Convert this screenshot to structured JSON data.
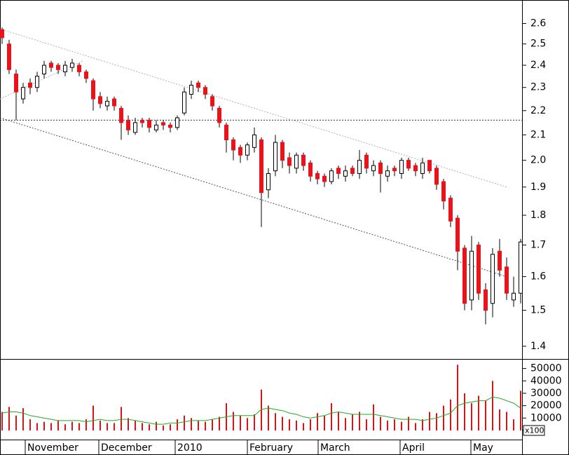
{
  "chart_data": [
    {
      "type": "candlestick",
      "log_scale": true,
      "up_color": "#ffffff",
      "down_color": "#e8131b",
      "edge_color": "#000000",
      "xlim": [
        -0.3,
        74.2
      ],
      "xticks": [
        {
          "value": 3.3,
          "label": "November"
        },
        {
          "value": 13.8,
          "label": "December"
        },
        {
          "value": 24.7,
          "label": "2010"
        },
        {
          "value": 35.0,
          "label": "February"
        },
        {
          "value": 45.1,
          "label": "March"
        },
        {
          "value": 56.8,
          "label": "April"
        },
        {
          "value": 66.9,
          "label": "May"
        }
      ],
      "ylim": [
        1.37,
        2.72
      ],
      "yticks": [
        1.4,
        1.5,
        1.6,
        1.7,
        1.8,
        1.9,
        {
          "value": 2,
          "label": "2.0"
        },
        2.1,
        2.2,
        2.3,
        2.4,
        2.5,
        2.6
      ],
      "open": [
        2.57,
        2.5,
        2.36,
        2.25,
        2.32,
        2.3,
        2.36,
        2.41,
        2.4,
        2.37,
        2.39,
        2.4,
        2.37,
        2.33,
        2.26,
        2.22,
        2.25,
        2.21,
        2.16,
        2.11,
        2.16,
        2.16,
        2.12,
        2.15,
        2.14,
        2.13,
        2.19,
        2.27,
        2.32,
        2.3,
        2.26,
        2.21,
        2.14,
        2.08,
        2.05,
        2.02,
        2.05,
        2.08,
        1.89,
        1.96,
        2.07,
        2.01,
        1.97,
        2.02,
        1.99,
        1.95,
        1.94,
        1.92,
        1.97,
        1.94,
        1.97,
        1.95,
        2.02,
        1.96,
        1.99,
        1.94,
        1.97,
        1.95,
        2.0,
        1.98,
        1.95,
        2.0,
        1.97,
        1.92,
        1.86,
        1.79,
        1.69,
        1.53,
        1.7,
        1.56,
        1.52,
        1.68,
        1.63,
        1.53,
        1.55
      ],
      "high": [
        2.58,
        2.52,
        2.38,
        2.32,
        2.34,
        2.37,
        2.42,
        2.42,
        2.41,
        2.42,
        2.43,
        2.41,
        2.38,
        2.34,
        2.28,
        2.26,
        2.26,
        2.22,
        2.18,
        2.17,
        2.17,
        2.17,
        2.16,
        2.16,
        2.15,
        2.18,
        2.3,
        2.33,
        2.33,
        2.31,
        2.27,
        2.22,
        2.15,
        2.09,
        2.06,
        2.07,
        2.13,
        2.09,
        1.97,
        2.1,
        2.08,
        2.03,
        2.03,
        2.03,
        2.0,
        1.96,
        1.95,
        1.97,
        1.98,
        1.98,
        1.98,
        2.04,
        2.03,
        2.0,
        2.0,
        1.98,
        1.98,
        2.01,
        2.01,
        1.99,
        2.01,
        2.0,
        1.98,
        1.93,
        1.87,
        1.8,
        1.7,
        1.73,
        1.71,
        1.58,
        1.69,
        1.72,
        1.66,
        1.6,
        1.72
      ],
      "low": [
        2.5,
        2.36,
        2.16,
        2.23,
        2.27,
        2.28,
        2.34,
        2.37,
        2.36,
        2.35,
        2.37,
        2.35,
        2.32,
        2.2,
        2.21,
        2.2,
        2.2,
        2.08,
        2.1,
        2.1,
        2.13,
        2.11,
        2.11,
        2.12,
        2.11,
        2.12,
        2.18,
        2.25,
        2.28,
        2.25,
        2.2,
        2.13,
        2.03,
        2.0,
        1.99,
        2.0,
        2.03,
        1.76,
        1.86,
        1.94,
        1.97,
        1.95,
        1.95,
        1.96,
        1.92,
        1.91,
        1.9,
        1.91,
        1.93,
        1.92,
        1.94,
        1.93,
        1.95,
        1.94,
        1.88,
        1.92,
        1.94,
        1.93,
        1.96,
        1.94,
        1.93,
        1.95,
        1.89,
        1.82,
        1.76,
        1.62,
        1.5,
        1.5,
        1.53,
        1.46,
        1.48,
        1.6,
        1.53,
        1.51,
        1.52
      ],
      "close": [
        2.53,
        2.38,
        2.28,
        2.3,
        2.3,
        2.35,
        2.4,
        2.39,
        2.38,
        2.4,
        2.41,
        2.37,
        2.34,
        2.25,
        2.23,
        2.24,
        2.22,
        2.15,
        2.12,
        2.15,
        2.15,
        2.13,
        2.14,
        2.14,
        2.13,
        2.17,
        2.28,
        2.31,
        2.3,
        2.27,
        2.22,
        2.15,
        2.08,
        2.04,
        2.02,
        2.06,
        2.1,
        1.88,
        1.95,
        2.07,
        2.0,
        1.98,
        2.02,
        1.98,
        1.94,
        1.93,
        1.92,
        1.96,
        1.95,
        1.96,
        1.95,
        2.0,
        1.97,
        1.98,
        1.95,
        1.96,
        1.96,
        2.0,
        1.97,
        1.96,
        1.99,
        1.96,
        1.91,
        1.85,
        1.78,
        1.68,
        1.52,
        1.68,
        1.55,
        1.5,
        1.67,
        1.62,
        1.55,
        1.55,
        1.71
      ],
      "lines": [
        {
          "x": [
            0,
            72
          ],
          "y": [
            2.57,
            1.9
          ],
          "color": "#b0b0b0"
        },
        {
          "x": [
            -0.3,
            72
          ],
          "y": [
            2.17,
            1.6
          ],
          "color": "#555555"
        },
        {
          "x": [
            -0.3,
            11.5
          ],
          "y": [
            2.25,
            2.42
          ],
          "color": "#b0b0b0"
        }
      ],
      "hlines": [
        2.16
      ]
    },
    {
      "type": "bar",
      "color": "#d01818",
      "unit_label": "x100",
      "ylim": [
        0,
        56000
      ],
      "yticks": [
        0,
        10000,
        20000,
        30000,
        40000,
        50000
      ],
      "values": [
        15000,
        19000,
        12000,
        18000,
        9000,
        6000,
        7000,
        6000,
        8000,
        5000,
        7000,
        6000,
        9000,
        20000,
        8000,
        6000,
        6000,
        19000,
        10000,
        8000,
        6000,
        5000,
        7000,
        4000,
        5000,
        9000,
        12000,
        10000,
        8000,
        7000,
        9000,
        11000,
        22000,
        15000,
        12000,
        10000,
        13000,
        33000,
        20000,
        14000,
        11000,
        9000,
        8000,
        6000,
        9000,
        14000,
        12000,
        22000,
        15000,
        10000,
        13000,
        15000,
        9000,
        21000,
        11000,
        8000,
        9000,
        7000,
        11000,
        6000,
        9000,
        15000,
        14000,
        20000,
        25000,
        53000,
        30000,
        22000,
        28000,
        24000,
        40000,
        17000,
        15000,
        9000,
        32000
      ],
      "ma": {
        "color": "#22aa22",
        "values": [
          14000,
          15000,
          15000,
          14000,
          12000,
          11000,
          10000,
          9000,
          8000,
          8000,
          8000,
          8000,
          7000,
          8000,
          9000,
          8000,
          8000,
          9000,
          9000,
          8000,
          7000,
          6000,
          5000,
          5000,
          6000,
          6000,
          7000,
          8000,
          8000,
          8000,
          9000,
          10000,
          11000,
          12000,
          12000,
          12000,
          12000,
          17000,
          18000,
          17000,
          16000,
          14000,
          13000,
          11000,
          10000,
          11000,
          12000,
          14000,
          15000,
          14000,
          13000,
          13000,
          13000,
          13000,
          12000,
          11000,
          10000,
          9000,
          9000,
          9000,
          8000,
          9000,
          10000,
          12000,
          14000,
          20000,
          22000,
          23000,
          24000,
          24000,
          27000,
          26000,
          24000,
          22000,
          18000
        ]
      }
    }
  ]
}
